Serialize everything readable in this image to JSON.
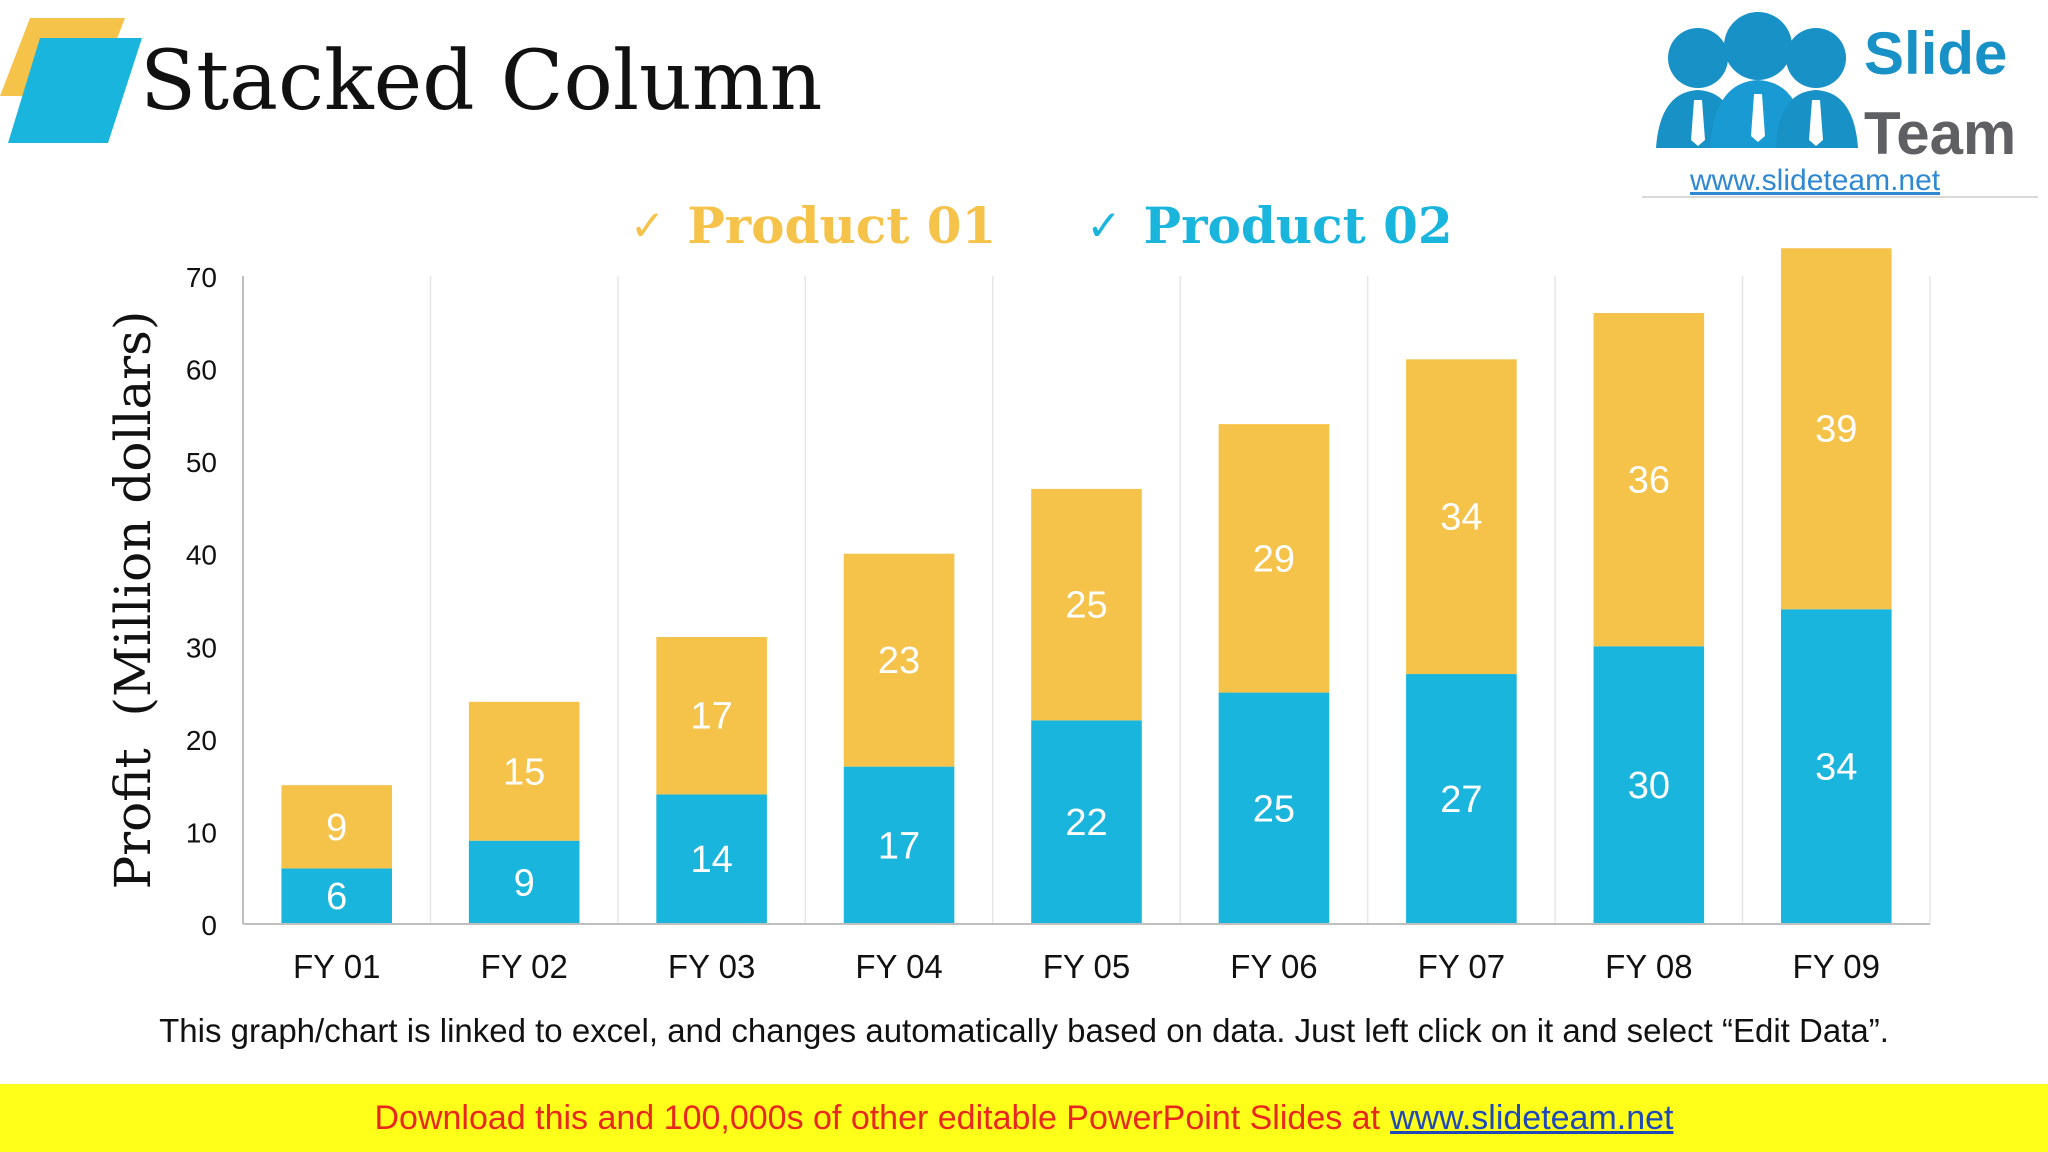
{
  "page": {
    "title": "Stacked Column"
  },
  "logo": {
    "line1": "Slide",
    "line2": "Team",
    "url": "www.slideteam.net"
  },
  "legend": [
    {
      "label": "Product 01",
      "color": "#f5c24a"
    },
    {
      "label": "Product 02",
      "color": "#1ab5dd"
    }
  ],
  "chart_data": {
    "type": "bar",
    "stacked": true,
    "title": "",
    "xlabel": "",
    "ylabel": "Profit  (Million dollars)",
    "ylim": [
      0,
      70
    ],
    "yticks": [
      0,
      10,
      20,
      30,
      40,
      50,
      60,
      70
    ],
    "categories": [
      "FY 01",
      "FY 02",
      "FY 03",
      "FY 04",
      "FY 05",
      "FY 06",
      "FY 07",
      "FY 08",
      "FY 09"
    ],
    "series": [
      {
        "name": "Product 02",
        "color": "#1ab5dd",
        "values": [
          6,
          9,
          14,
          17,
          22,
          25,
          27,
          30,
          34
        ]
      },
      {
        "name": "Product 01",
        "color": "#f5c24a",
        "values": [
          9,
          15,
          17,
          23,
          25,
          29,
          34,
          36,
          39
        ]
      }
    ],
    "grid": "vertical category separators",
    "legend_position": "top"
  },
  "note": "This graph/chart is linked to excel, and changes automatically based on data. Just left click on it and select “Edit Data”.",
  "footer": {
    "text": "Download this and 100,000s of other editable PowerPoint Slides at",
    "link": "www.slideteam.net"
  }
}
